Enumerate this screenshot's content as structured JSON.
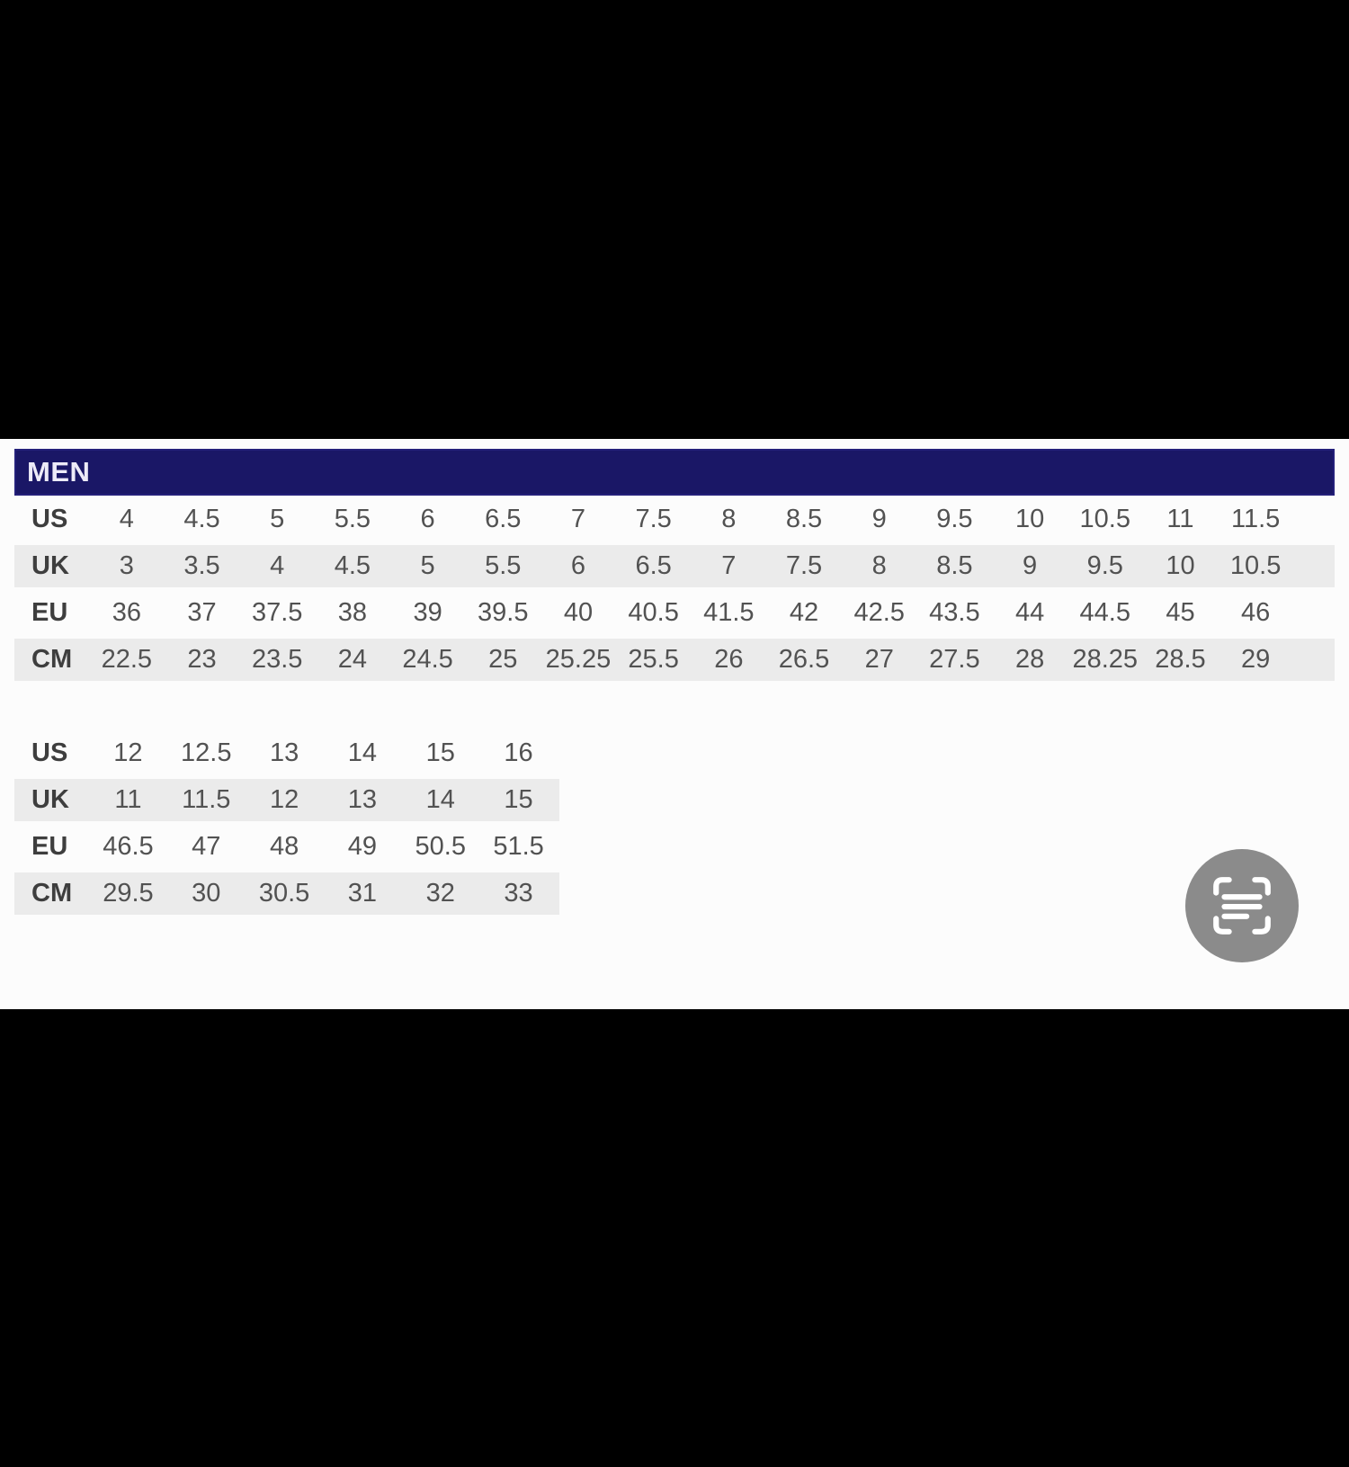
{
  "viewer": {
    "background_color": "#000000",
    "photo_background_color": "#fcfcfc",
    "scan_button": {
      "icon": "live-text-scan-icon",
      "bg_color": "#8b8b8b",
      "glyph_color": "#ffffff"
    }
  },
  "header": {
    "title": "MEN",
    "bg_color": "#1a1766",
    "text_color": "#edebf8"
  },
  "colors": {
    "row_shade": "#ebebeb",
    "value_text": "#525252",
    "label_text": "#3e3e3e"
  },
  "tables": {
    "table1": {
      "rows": [
        {
          "label": "US",
          "shaded": false,
          "values": [
            "4",
            "4.5",
            "5",
            "5.5",
            "6",
            "6.5",
            "7",
            "7.5",
            "8",
            "8.5",
            "9",
            "9.5",
            "10",
            "10.5",
            "11",
            "11.5"
          ]
        },
        {
          "label": "UK",
          "shaded": true,
          "values": [
            "3",
            "3.5",
            "4",
            "4.5",
            "5",
            "5.5",
            "6",
            "6.5",
            "7",
            "7.5",
            "8",
            "8.5",
            "9",
            "9.5",
            "10",
            "10.5"
          ]
        },
        {
          "label": "EU",
          "shaded": false,
          "values": [
            "36",
            "37",
            "37.5",
            "38",
            "39",
            "39.5",
            "40",
            "40.5",
            "41.5",
            "42",
            "42.5",
            "43.5",
            "44",
            "44.5",
            "45",
            "46"
          ]
        },
        {
          "label": "CM",
          "shaded": true,
          "values": [
            "22.5",
            "23",
            "23.5",
            "24",
            "24.5",
            "25",
            "25.25",
            "25.5",
            "26",
            "26.5",
            "27",
            "27.5",
            "28",
            "28.25",
            "28.5",
            "29"
          ]
        }
      ]
    },
    "table2": {
      "rows": [
        {
          "label": "US",
          "shaded": false,
          "values": [
            "12",
            "12.5",
            "13",
            "14",
            "15",
            "16"
          ]
        },
        {
          "label": "UK",
          "shaded": true,
          "values": [
            "11",
            "11.5",
            "12",
            "13",
            "14",
            "15"
          ]
        },
        {
          "label": "EU",
          "shaded": false,
          "values": [
            "46.5",
            "47",
            "48",
            "49",
            "50.5",
            "51.5"
          ]
        },
        {
          "label": "CM",
          "shaded": true,
          "values": [
            "29.5",
            "30",
            "30.5",
            "31",
            "32",
            "33"
          ]
        }
      ]
    }
  },
  "chart_data": [
    {
      "type": "table",
      "title": "MEN",
      "row_headers": [
        "US",
        "UK",
        "EU",
        "CM"
      ],
      "rows": [
        [
          "4",
          "4.5",
          "5",
          "5.5",
          "6",
          "6.5",
          "7",
          "7.5",
          "8",
          "8.5",
          "9",
          "9.5",
          "10",
          "10.5",
          "11",
          "11.5"
        ],
        [
          "3",
          "3.5",
          "4",
          "4.5",
          "5",
          "5.5",
          "6",
          "6.5",
          "7",
          "7.5",
          "8",
          "8.5",
          "9",
          "9.5",
          "10",
          "10.5"
        ],
        [
          "36",
          "37",
          "37.5",
          "38",
          "39",
          "39.5",
          "40",
          "40.5",
          "41.5",
          "42",
          "42.5",
          "43.5",
          "44",
          "44.5",
          "45",
          "46"
        ],
        [
          "22.5",
          "23",
          "23.5",
          "24",
          "24.5",
          "25",
          "25.25",
          "25.5",
          "26",
          "26.5",
          "27",
          "27.5",
          "28",
          "28.25",
          "28.5",
          "29"
        ]
      ]
    },
    {
      "type": "table",
      "title": "MEN (continued)",
      "row_headers": [
        "US",
        "UK",
        "EU",
        "CM"
      ],
      "rows": [
        [
          "12",
          "12.5",
          "13",
          "14",
          "15",
          "16"
        ],
        [
          "11",
          "11.5",
          "12",
          "13",
          "14",
          "15"
        ],
        [
          "46.5",
          "47",
          "48",
          "49",
          "50.5",
          "51.5"
        ],
        [
          "29.5",
          "30",
          "30.5",
          "31",
          "32",
          "33"
        ]
      ]
    }
  ]
}
